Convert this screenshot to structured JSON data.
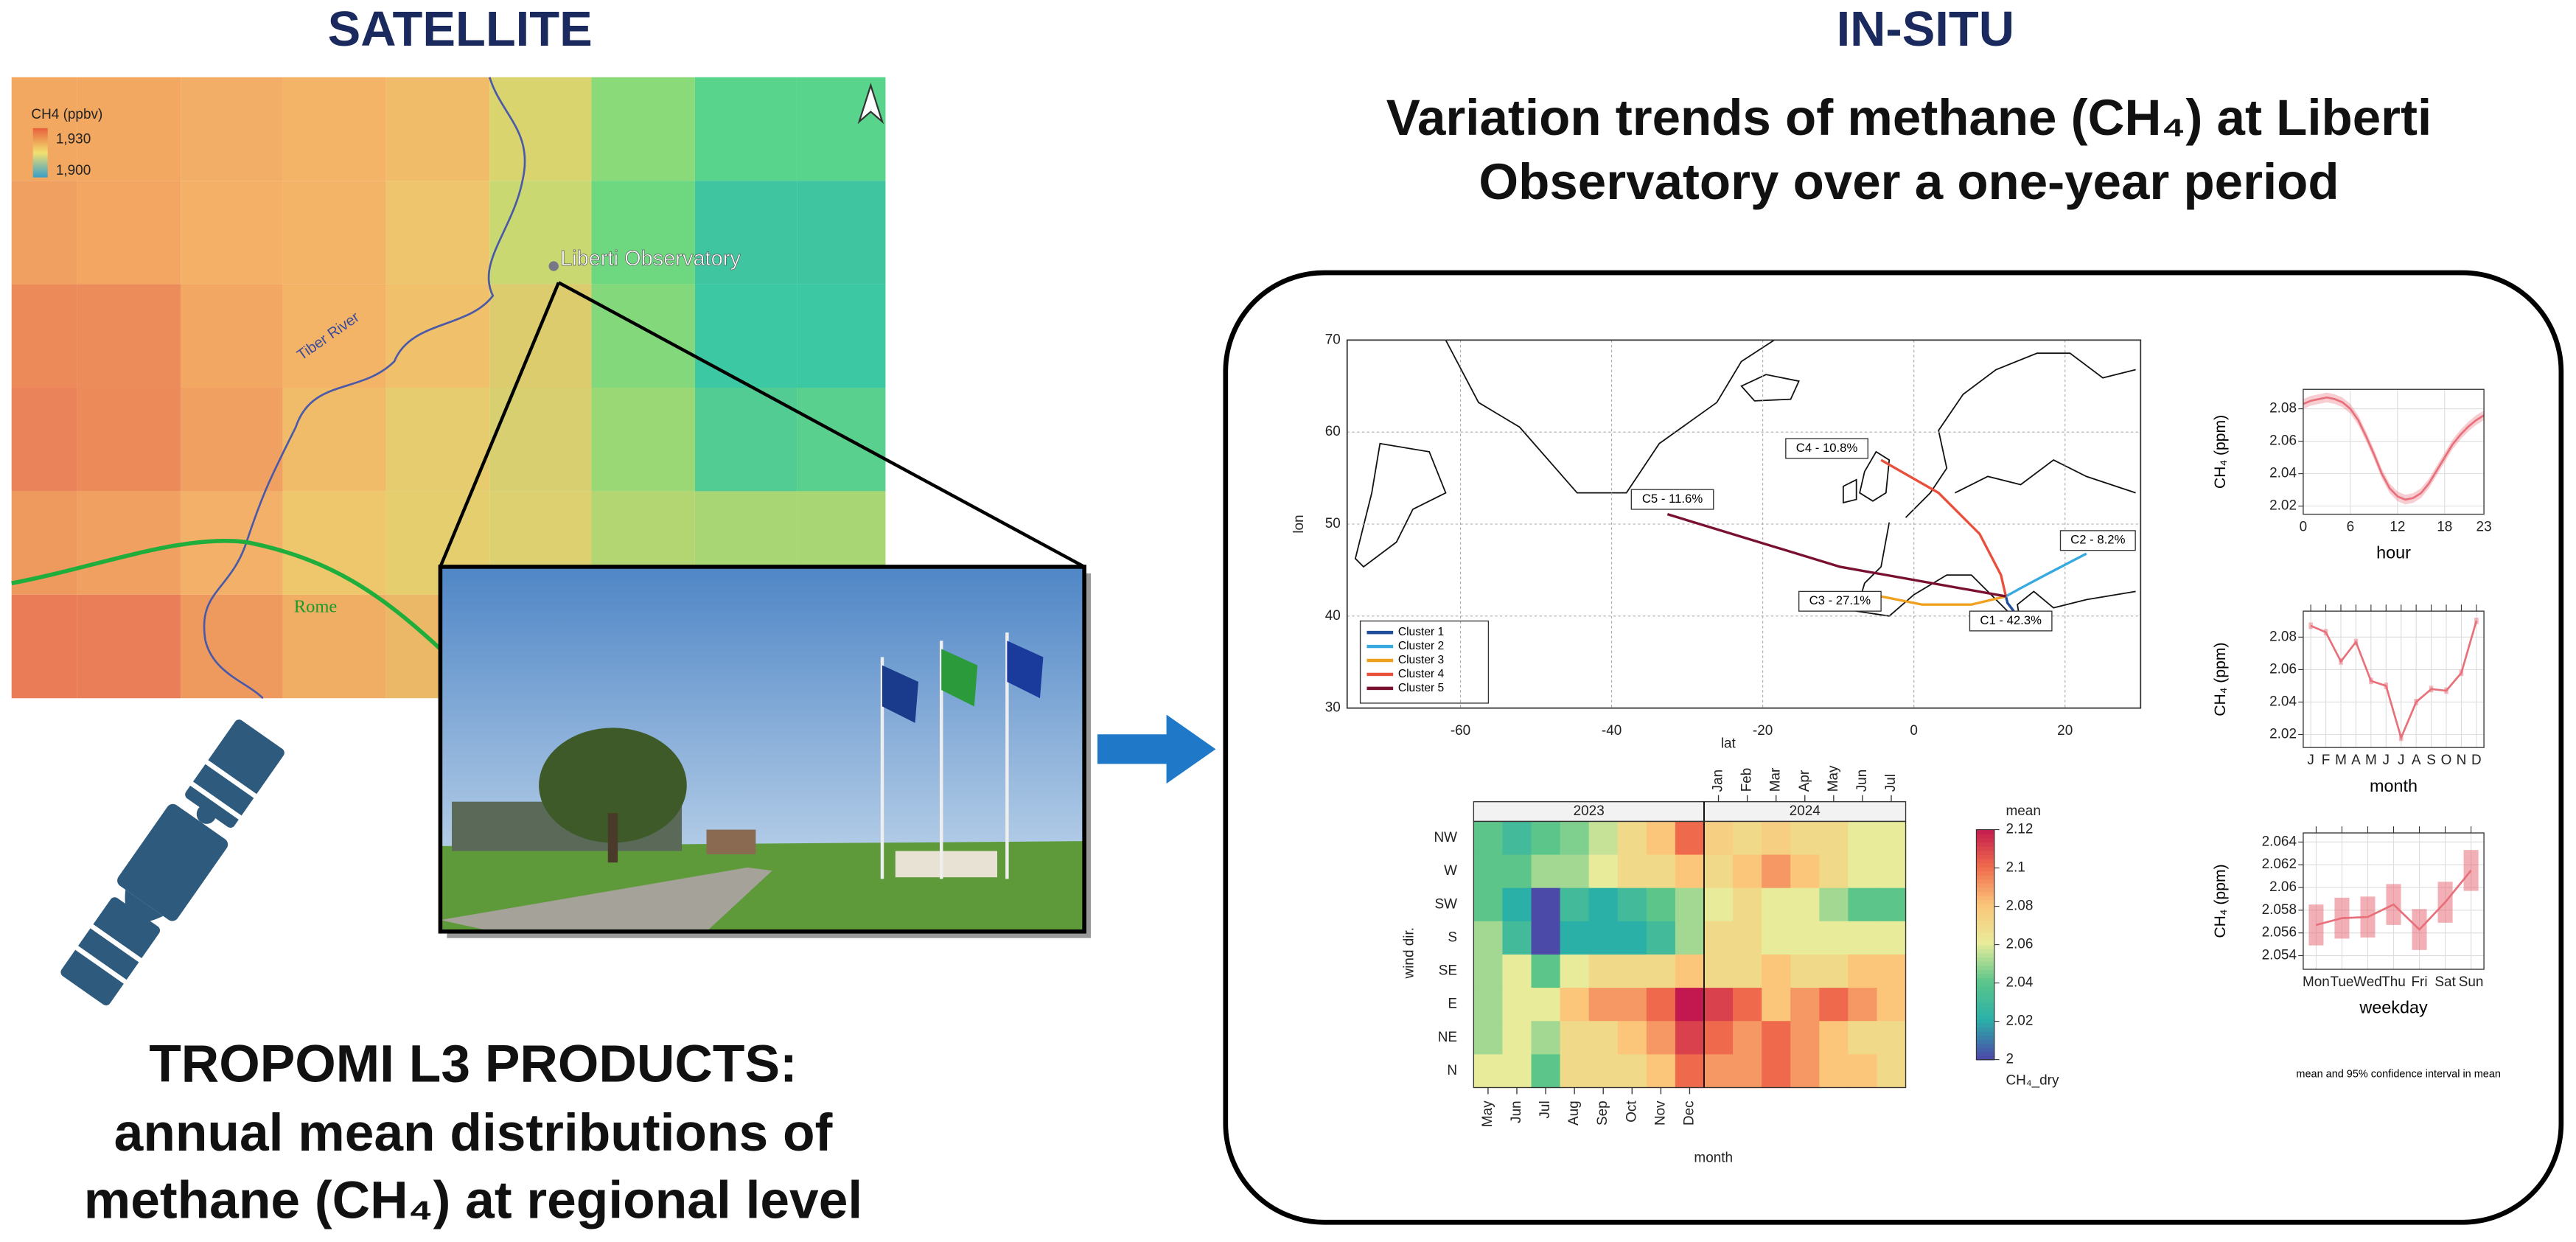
{
  "satellite": {
    "heading": "SATELLITE",
    "map": {
      "legend_title": "CH4 (ppbv)",
      "legend": [
        {
          "value": 1930,
          "label": "1,930"
        },
        {
          "value": 1900,
          "label": "1,900"
        }
      ],
      "place_labels": [
        "Liberti Observatory",
        "Tiber River",
        "Rome"
      ]
    },
    "caption": [
      "TROPOMI L3 PRODUCTS:",
      "annual mean distributions of",
      "methane (CH₄) at regional level"
    ]
  },
  "insitu": {
    "heading": "IN-SITU",
    "title": [
      "Variation trends of methane (CH₄) at Liberti",
      "Observatory over a one-year period"
    ],
    "trajectories": {
      "xlabel": "lat",
      "ylabel": "lon",
      "xlim": [
        -75,
        30
      ],
      "ylim": [
        30,
        70
      ],
      "xticks": [
        -60,
        -40,
        -20,
        0,
        20
      ],
      "yticks": [
        30,
        40,
        50,
        60,
        70
      ],
      "clusters": [
        {
          "name": "Cluster 1",
          "label": "C1 - 42.3%",
          "color": "#1f4e9c"
        },
        {
          "name": "Cluster 2",
          "label": "C2 - 8.2%",
          "color": "#37a9e1"
        },
        {
          "name": "Cluster 3",
          "label": "C3 - 27.1%",
          "color": "#f0a020"
        },
        {
          "name": "Cluster 4",
          "label": "C4 - 10.8%",
          "color": "#e8503c"
        },
        {
          "name": "Cluster 5",
          "label": "C5 - 11.6%",
          "color": "#7a1030"
        }
      ]
    },
    "heatmap": {
      "xlabel": "month",
      "ylabel": "wind dir.",
      "colorbar_title": "mean",
      "colorbar_footer": "CH₄_dry",
      "columns": [
        {
          "year": "2023",
          "months": [
            "May",
            "Jun",
            "Jul",
            "Aug",
            "Sep",
            "Oct",
            "Nov",
            "Dec"
          ]
        },
        {
          "year": "2024",
          "months": [
            "Jan",
            "Feb",
            "Mar",
            "Apr",
            "May",
            "Jun",
            "Jul"
          ]
        }
      ],
      "rows": [
        "NW",
        "W",
        "SW",
        "S",
        "SE",
        "E",
        "NE",
        "N"
      ],
      "values": [
        [
          2.04,
          2.03,
          2.04,
          2.045,
          2.055,
          2.07,
          2.08,
          2.1,
          2.075,
          2.07,
          2.075,
          2.07,
          2.07,
          2.06,
          2.06
        ],
        [
          2.04,
          2.04,
          2.05,
          2.05,
          2.06,
          2.07,
          2.07,
          2.08,
          2.07,
          2.08,
          2.09,
          2.08,
          2.07,
          2.06,
          2.06
        ],
        [
          2.04,
          2.02,
          2.0,
          2.03,
          2.02,
          2.03,
          2.04,
          2.05,
          2.06,
          2.07,
          2.06,
          2.06,
          2.05,
          2.04,
          2.04
        ],
        [
          2.05,
          2.03,
          2.0,
          2.02,
          2.02,
          2.02,
          2.03,
          2.05,
          2.07,
          2.07,
          2.06,
          2.06,
          2.06,
          2.06,
          2.06
        ],
        [
          2.05,
          2.06,
          2.04,
          2.06,
          2.07,
          2.07,
          2.07,
          2.08,
          2.07,
          2.07,
          2.08,
          2.07,
          2.07,
          2.08,
          2.08
        ],
        [
          2.05,
          2.06,
          2.06,
          2.08,
          2.09,
          2.09,
          2.1,
          2.12,
          2.11,
          2.1,
          2.08,
          2.09,
          2.1,
          2.09,
          2.08
        ],
        [
          2.05,
          2.06,
          2.05,
          2.07,
          2.07,
          2.08,
          2.09,
          2.11,
          2.1,
          2.09,
          2.1,
          2.09,
          2.08,
          2.07,
          2.07
        ],
        [
          2.06,
          2.06,
          2.04,
          2.07,
          2.07,
          2.07,
          2.08,
          2.1,
          2.09,
          2.09,
          2.1,
          2.09,
          2.08,
          2.08,
          2.07
        ]
      ],
      "clim": [
        2,
        2.12
      ],
      "cticks": [
        2,
        2.02,
        2.04,
        2.06,
        2.08,
        2.1,
        2.12
      ],
      "colormap": [
        "#4b4aa8",
        "#2bb0a8",
        "#5cc58a",
        "#e8ec9a",
        "#fbc57a",
        "#ef6a4c",
        "#c2184f"
      ]
    },
    "hour": {
      "xlabel": "hour",
      "ylabel": "CH₄ (ppm)",
      "x": [
        0,
        1,
        2,
        3,
        4,
        5,
        6,
        7,
        8,
        9,
        10,
        11,
        12,
        13,
        14,
        15,
        16,
        17,
        18,
        19,
        20,
        21,
        22,
        23
      ],
      "values": [
        2.083,
        2.085,
        2.086,
        2.087,
        2.086,
        2.084,
        2.08,
        2.073,
        2.063,
        2.052,
        2.04,
        2.031,
        2.026,
        2.024,
        2.025,
        2.028,
        2.034,
        2.042,
        2.05,
        2.058,
        2.064,
        2.069,
        2.073,
        2.076
      ],
      "ci": 0.003,
      "xlim": [
        0,
        23
      ],
      "xticks": [
        0,
        6,
        12,
        18,
        23
      ],
      "ylim": [
        2.015,
        2.092
      ],
      "yticks": [
        2.02,
        2.04,
        2.06,
        2.08
      ],
      "color": "#e8707a"
    },
    "month": {
      "xlabel": "month",
      "ylabel": "CH₄ (ppm)",
      "categories": [
        "J",
        "F",
        "M",
        "A",
        "M",
        "J",
        "J",
        "A",
        "S",
        "O",
        "N",
        "D"
      ],
      "values": [
        2.087,
        2.083,
        2.065,
        2.077,
        2.053,
        2.05,
        2.018,
        2.04,
        2.048,
        2.047,
        2.058,
        2.09
      ],
      "ci": 0.002,
      "ylim": [
        2.012,
        2.096
      ],
      "yticks": [
        2.02,
        2.04,
        2.06,
        2.08
      ],
      "color": "#e8707a"
    },
    "weekday": {
      "xlabel": "weekday",
      "ylabel": "CH₄ (ppm)",
      "categories": [
        "Mon",
        "Tue",
        "Wed",
        "Thu",
        "Fri",
        "Sat",
        "Sun"
      ],
      "values": [
        2.0567,
        2.0573,
        2.0574,
        2.0585,
        2.0563,
        2.0587,
        2.0615
      ],
      "ci": 0.0018,
      "ylim": [
        2.0528,
        2.0648
      ],
      "yticks": [
        2.054,
        2.056,
        2.058,
        2.06,
        2.062,
        2.064
      ],
      "color": "#e8707a"
    },
    "note": "mean and 95% confidence interval in mean"
  }
}
